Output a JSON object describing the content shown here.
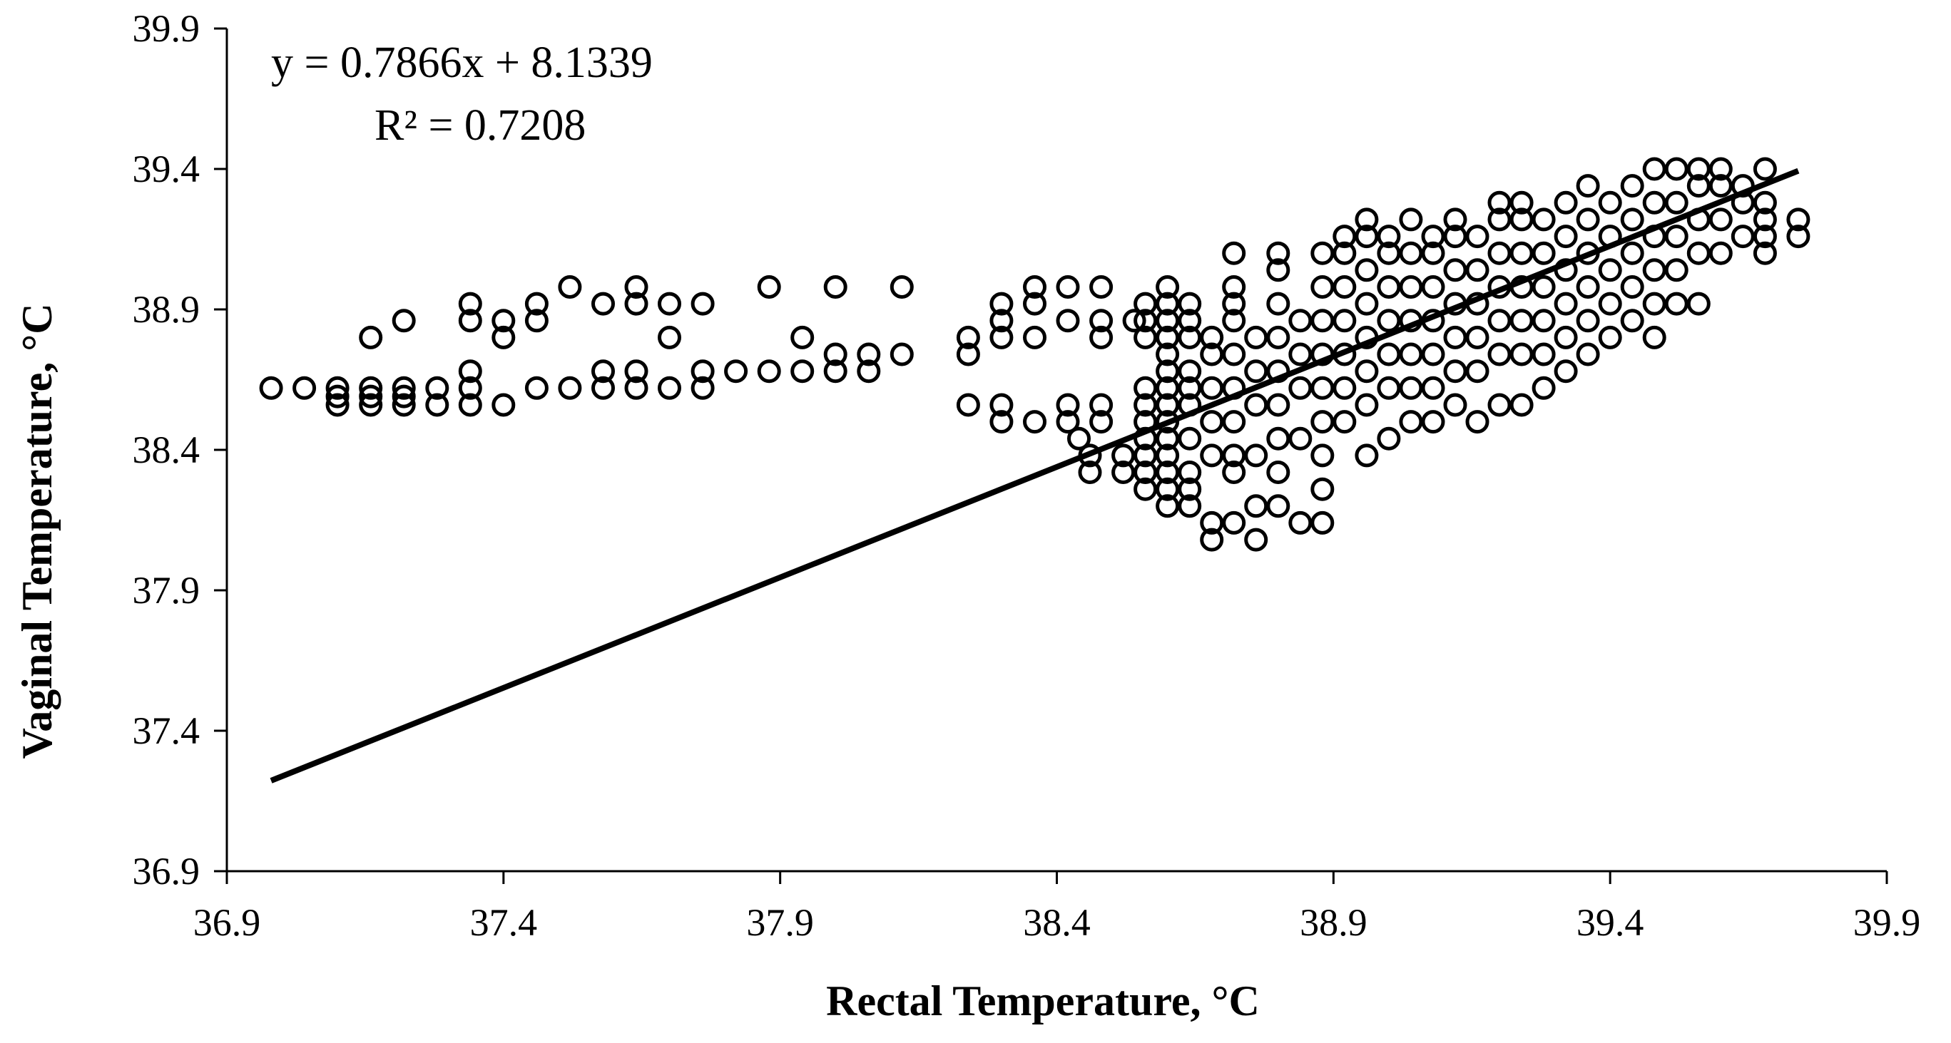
{
  "chart_data": {
    "type": "scatter",
    "xlabel": "Rectal Temperature, °C",
    "ylabel": "Vaginal Temperature, °C",
    "xlim": [
      36.9,
      39.9
    ],
    "ylim": [
      36.9,
      39.9
    ],
    "x_ticks": [
      "36.9",
      "37.4",
      "37.9",
      "38.4",
      "38.9",
      "39.4",
      "39.9"
    ],
    "y_ticks": [
      "36.9",
      "37.4",
      "37.9",
      "38.4",
      "38.9",
      "39.4",
      "39.9"
    ],
    "grid": false,
    "marker": "open-circle",
    "annotations": {
      "equation": "y = 0.7866x  + 8.1339",
      "r_squared": "R² = 0.7208"
    },
    "trendline": {
      "slope": 0.7866,
      "intercept": 8.1339,
      "x_range": [
        36.98,
        39.74
      ]
    },
    "points": [
      [
        36.98,
        38.62
      ],
      [
        37.04,
        38.62
      ],
      [
        37.1,
        38.59
      ],
      [
        37.1,
        38.62
      ],
      [
        37.1,
        38.56
      ],
      [
        37.16,
        38.59
      ],
      [
        37.16,
        38.62
      ],
      [
        37.16,
        38.56
      ],
      [
        37.16,
        38.8
      ],
      [
        37.22,
        38.62
      ],
      [
        37.22,
        38.59
      ],
      [
        37.22,
        38.56
      ],
      [
        37.22,
        38.86
      ],
      [
        37.28,
        38.62
      ],
      [
        37.28,
        38.56
      ],
      [
        37.34,
        38.62
      ],
      [
        37.34,
        38.56
      ],
      [
        37.34,
        38.68
      ],
      [
        37.34,
        38.86
      ],
      [
        37.34,
        38.92
      ],
      [
        37.4,
        38.56
      ],
      [
        37.4,
        38.8
      ],
      [
        37.4,
        38.86
      ],
      [
        37.46,
        38.62
      ],
      [
        37.46,
        38.86
      ],
      [
        37.46,
        38.92
      ],
      [
        37.52,
        38.62
      ],
      [
        37.52,
        38.98
      ],
      [
        37.58,
        38.62
      ],
      [
        37.58,
        38.68
      ],
      [
        37.58,
        38.92
      ],
      [
        37.64,
        38.62
      ],
      [
        37.64,
        38.68
      ],
      [
        37.64,
        38.92
      ],
      [
        37.64,
        38.98
      ],
      [
        37.7,
        38.62
      ],
      [
        37.7,
        38.8
      ],
      [
        37.7,
        38.92
      ],
      [
        37.76,
        38.62
      ],
      [
        37.76,
        38.68
      ],
      [
        37.76,
        38.92
      ],
      [
        37.82,
        38.68
      ],
      [
        37.88,
        38.68
      ],
      [
        37.88,
        38.98
      ],
      [
        37.94,
        38.68
      ],
      [
        37.94,
        38.8
      ],
      [
        38,
        38.68
      ],
      [
        38,
        38.74
      ],
      [
        38,
        38.98
      ],
      [
        38.06,
        38.68
      ],
      [
        38.06,
        38.74
      ],
      [
        38.12,
        38.74
      ],
      [
        38.12,
        38.98
      ],
      [
        38.24,
        38.56
      ],
      [
        38.24,
        38.74
      ],
      [
        38.24,
        38.8
      ],
      [
        38.3,
        38.5
      ],
      [
        38.3,
        38.56
      ],
      [
        38.3,
        38.8
      ],
      [
        38.3,
        38.86
      ],
      [
        38.3,
        38.92
      ],
      [
        38.36,
        38.5
      ],
      [
        38.36,
        38.8
      ],
      [
        38.36,
        38.92
      ],
      [
        38.36,
        38.98
      ],
      [
        38.42,
        38.5
      ],
      [
        38.42,
        38.56
      ],
      [
        38.42,
        38.86
      ],
      [
        38.42,
        38.98
      ],
      [
        38.44,
        38.44
      ],
      [
        38.46,
        38.32
      ],
      [
        38.46,
        38.38
      ],
      [
        38.48,
        38.5
      ],
      [
        38.48,
        38.56
      ],
      [
        38.48,
        38.8
      ],
      [
        38.48,
        38.86
      ],
      [
        38.48,
        38.98
      ],
      [
        38.52,
        38.32
      ],
      [
        38.52,
        38.38
      ],
      [
        38.54,
        38.86
      ],
      [
        38.56,
        38.26
      ],
      [
        38.56,
        38.32
      ],
      [
        38.56,
        38.38
      ],
      [
        38.56,
        38.44
      ],
      [
        38.56,
        38.5
      ],
      [
        38.56,
        38.56
      ],
      [
        38.56,
        38.62
      ],
      [
        38.56,
        38.8
      ],
      [
        38.56,
        38.86
      ],
      [
        38.56,
        38.92
      ],
      [
        38.6,
        38.2
      ],
      [
        38.6,
        38.26
      ],
      [
        38.6,
        38.32
      ],
      [
        38.6,
        38.38
      ],
      [
        38.6,
        38.44
      ],
      [
        38.6,
        38.5
      ],
      [
        38.6,
        38.56
      ],
      [
        38.6,
        38.62
      ],
      [
        38.6,
        38.68
      ],
      [
        38.6,
        38.74
      ],
      [
        38.6,
        38.8
      ],
      [
        38.6,
        38.86
      ],
      [
        38.6,
        38.92
      ],
      [
        38.6,
        38.98
      ],
      [
        38.64,
        38.2
      ],
      [
        38.64,
        38.26
      ],
      [
        38.64,
        38.32
      ],
      [
        38.64,
        38.44
      ],
      [
        38.64,
        38.56
      ],
      [
        38.64,
        38.62
      ],
      [
        38.64,
        38.68
      ],
      [
        38.64,
        38.8
      ],
      [
        38.64,
        38.86
      ],
      [
        38.64,
        38.92
      ],
      [
        38.68,
        38.08
      ],
      [
        38.68,
        38.14
      ],
      [
        38.68,
        38.38
      ],
      [
        38.68,
        38.5
      ],
      [
        38.68,
        38.62
      ],
      [
        38.68,
        38.74
      ],
      [
        38.68,
        38.8
      ],
      [
        38.72,
        38.14
      ],
      [
        38.72,
        38.32
      ],
      [
        38.72,
        38.38
      ],
      [
        38.72,
        38.5
      ],
      [
        38.72,
        38.62
      ],
      [
        38.72,
        38.74
      ],
      [
        38.72,
        38.86
      ],
      [
        38.72,
        38.92
      ],
      [
        38.72,
        38.98
      ],
      [
        38.72,
        39.1
      ],
      [
        38.76,
        38.08
      ],
      [
        38.76,
        38.2
      ],
      [
        38.76,
        38.38
      ],
      [
        38.76,
        38.56
      ],
      [
        38.76,
        38.68
      ],
      [
        38.76,
        38.8
      ],
      [
        38.8,
        38.2
      ],
      [
        38.8,
        38.32
      ],
      [
        38.8,
        38.44
      ],
      [
        38.8,
        38.56
      ],
      [
        38.8,
        38.68
      ],
      [
        38.8,
        38.8
      ],
      [
        38.8,
        38.92
      ],
      [
        38.8,
        39.04
      ],
      [
        38.8,
        39.1
      ],
      [
        38.84,
        38.14
      ],
      [
        38.84,
        38.44
      ],
      [
        38.84,
        38.62
      ],
      [
        38.84,
        38.74
      ],
      [
        38.84,
        38.86
      ],
      [
        38.88,
        38.14
      ],
      [
        38.88,
        38.26
      ],
      [
        38.88,
        38.38
      ],
      [
        38.88,
        38.5
      ],
      [
        38.88,
        38.62
      ],
      [
        38.88,
        38.74
      ],
      [
        38.88,
        38.86
      ],
      [
        38.88,
        38.98
      ],
      [
        38.88,
        39.1
      ],
      [
        38.92,
        38.5
      ],
      [
        38.92,
        38.62
      ],
      [
        38.92,
        38.74
      ],
      [
        38.92,
        38.86
      ],
      [
        38.92,
        38.98
      ],
      [
        38.92,
        39.1
      ],
      [
        38.92,
        39.16
      ],
      [
        38.96,
        38.38
      ],
      [
        38.96,
        38.56
      ],
      [
        38.96,
        38.68
      ],
      [
        38.96,
        38.8
      ],
      [
        38.96,
        38.92
      ],
      [
        38.96,
        39.04
      ],
      [
        38.96,
        39.16
      ],
      [
        38.96,
        39.22
      ],
      [
        39,
        38.44
      ],
      [
        39,
        38.62
      ],
      [
        39,
        38.74
      ],
      [
        39,
        38.86
      ],
      [
        39,
        38.98
      ],
      [
        39,
        39.1
      ],
      [
        39,
        39.16
      ],
      [
        39.04,
        38.5
      ],
      [
        39.04,
        38.62
      ],
      [
        39.04,
        38.74
      ],
      [
        39.04,
        38.86
      ],
      [
        39.04,
        38.98
      ],
      [
        39.04,
        39.1
      ],
      [
        39.04,
        39.22
      ],
      [
        39.08,
        38.5
      ],
      [
        39.08,
        38.62
      ],
      [
        39.08,
        38.74
      ],
      [
        39.08,
        38.86
      ],
      [
        39.08,
        38.98
      ],
      [
        39.08,
        39.1
      ],
      [
        39.08,
        39.16
      ],
      [
        39.12,
        38.56
      ],
      [
        39.12,
        38.68
      ],
      [
        39.12,
        38.8
      ],
      [
        39.12,
        38.92
      ],
      [
        39.12,
        39.04
      ],
      [
        39.12,
        39.16
      ],
      [
        39.12,
        39.22
      ],
      [
        39.16,
        38.5
      ],
      [
        39.16,
        38.68
      ],
      [
        39.16,
        38.8
      ],
      [
        39.16,
        38.92
      ],
      [
        39.16,
        39.04
      ],
      [
        39.16,
        39.16
      ],
      [
        39.2,
        38.56
      ],
      [
        39.2,
        38.74
      ],
      [
        39.2,
        38.86
      ],
      [
        39.2,
        38.98
      ],
      [
        39.2,
        39.1
      ],
      [
        39.2,
        39.22
      ],
      [
        39.2,
        39.28
      ],
      [
        39.24,
        38.56
      ],
      [
        39.24,
        38.74
      ],
      [
        39.24,
        38.86
      ],
      [
        39.24,
        38.98
      ],
      [
        39.24,
        39.1
      ],
      [
        39.24,
        39.22
      ],
      [
        39.24,
        39.28
      ],
      [
        39.28,
        38.62
      ],
      [
        39.28,
        38.74
      ],
      [
        39.28,
        38.86
      ],
      [
        39.28,
        38.98
      ],
      [
        39.28,
        39.1
      ],
      [
        39.28,
        39.22
      ],
      [
        39.32,
        38.68
      ],
      [
        39.32,
        38.8
      ],
      [
        39.32,
        38.92
      ],
      [
        39.32,
        39.04
      ],
      [
        39.32,
        39.16
      ],
      [
        39.32,
        39.28
      ],
      [
        39.36,
        38.74
      ],
      [
        39.36,
        38.86
      ],
      [
        39.36,
        38.98
      ],
      [
        39.36,
        39.1
      ],
      [
        39.36,
        39.22
      ],
      [
        39.36,
        39.34
      ],
      [
        39.4,
        38.8
      ],
      [
        39.4,
        38.92
      ],
      [
        39.4,
        39.04
      ],
      [
        39.4,
        39.16
      ],
      [
        39.4,
        39.28
      ],
      [
        39.44,
        38.86
      ],
      [
        39.44,
        38.98
      ],
      [
        39.44,
        39.1
      ],
      [
        39.44,
        39.22
      ],
      [
        39.44,
        39.34
      ],
      [
        39.48,
        38.8
      ],
      [
        39.48,
        38.92
      ],
      [
        39.48,
        39.04
      ],
      [
        39.48,
        39.16
      ],
      [
        39.48,
        39.28
      ],
      [
        39.48,
        39.4
      ],
      [
        39.52,
        38.92
      ],
      [
        39.52,
        39.04
      ],
      [
        39.52,
        39.16
      ],
      [
        39.52,
        39.28
      ],
      [
        39.52,
        39.4
      ],
      [
        39.56,
        38.92
      ],
      [
        39.56,
        39.1
      ],
      [
        39.56,
        39.22
      ],
      [
        39.56,
        39.34
      ],
      [
        39.56,
        39.4
      ],
      [
        39.6,
        39.1
      ],
      [
        39.6,
        39.22
      ],
      [
        39.6,
        39.34
      ],
      [
        39.6,
        39.4
      ],
      [
        39.64,
        39.16
      ],
      [
        39.64,
        39.28
      ],
      [
        39.64,
        39.34
      ],
      [
        39.68,
        39.1
      ],
      [
        39.68,
        39.16
      ],
      [
        39.68,
        39.22
      ],
      [
        39.68,
        39.28
      ],
      [
        39.68,
        39.4
      ],
      [
        39.74,
        39.16
      ],
      [
        39.74,
        39.22
      ]
    ]
  }
}
